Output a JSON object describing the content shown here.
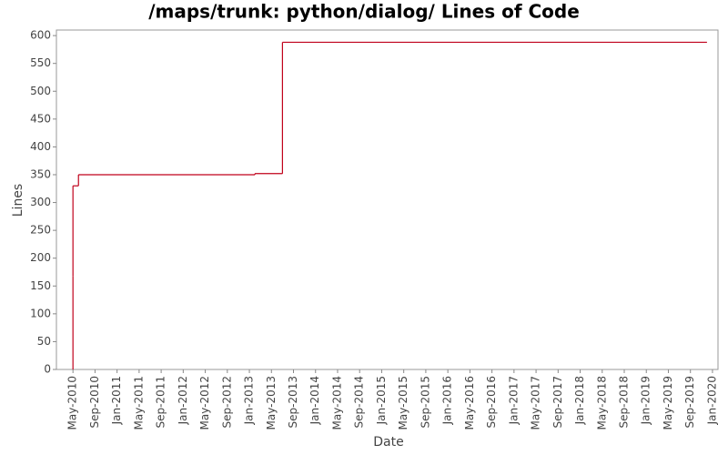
{
  "chart_data": {
    "type": "step",
    "title": "/maps/trunk: python/dialog/ Lines of Code",
    "x_label": "Date",
    "y_label": "Lines",
    "x": [
      "2010-05",
      "2010-05",
      "2010-05",
      "2010-06",
      "2010-06",
      "2013-02",
      "2013-07",
      "2019-12"
    ],
    "series": [
      {
        "name": "Lines",
        "color": "#c0001a",
        "values": [
          0,
          168,
          330,
          345,
          350,
          352,
          588,
          588
        ]
      }
    ],
    "xlim": [
      "2010-02",
      "2020-02"
    ],
    "ylim": [
      0,
      610
    ],
    "yticks": [
      0,
      50,
      100,
      150,
      200,
      250,
      300,
      350,
      400,
      450,
      500,
      550,
      600
    ],
    "xticks": [
      {
        "value": "2010-05",
        "label": "May-2010"
      },
      {
        "value": "2010-09",
        "label": "Sep-2010"
      },
      {
        "value": "2011-01",
        "label": "Jan-2011"
      },
      {
        "value": "2011-05",
        "label": "May-2011"
      },
      {
        "value": "2011-09",
        "label": "Sep-2011"
      },
      {
        "value": "2012-01",
        "label": "Jan-2012"
      },
      {
        "value": "2012-05",
        "label": "May-2012"
      },
      {
        "value": "2012-09",
        "label": "Sep-2012"
      },
      {
        "value": "2013-01",
        "label": "Jan-2013"
      },
      {
        "value": "2013-05",
        "label": "May-2013"
      },
      {
        "value": "2013-09",
        "label": "Sep-2013"
      },
      {
        "value": "2014-01",
        "label": "Jan-2014"
      },
      {
        "value": "2014-05",
        "label": "May-2014"
      },
      {
        "value": "2014-09",
        "label": "Sep-2014"
      },
      {
        "value": "2015-01",
        "label": "Jan-2015"
      },
      {
        "value": "2015-05",
        "label": "May-2015"
      },
      {
        "value": "2015-09",
        "label": "Sep-2015"
      },
      {
        "value": "2016-01",
        "label": "Jan-2016"
      },
      {
        "value": "2016-05",
        "label": "May-2016"
      },
      {
        "value": "2016-09",
        "label": "Sep-2016"
      },
      {
        "value": "2017-01",
        "label": "Jan-2017"
      },
      {
        "value": "2017-05",
        "label": "May-2017"
      },
      {
        "value": "2017-09",
        "label": "Sep-2017"
      },
      {
        "value": "2018-01",
        "label": "Jan-2018"
      },
      {
        "value": "2018-05",
        "label": "May-2018"
      },
      {
        "value": "2018-09",
        "label": "Sep-2018"
      },
      {
        "value": "2019-01",
        "label": "Jan-2019"
      },
      {
        "value": "2019-05",
        "label": "May-2019"
      },
      {
        "value": "2019-09",
        "label": "Sep-2019"
      },
      {
        "value": "2020-01",
        "label": "Jan-2020"
      }
    ]
  }
}
